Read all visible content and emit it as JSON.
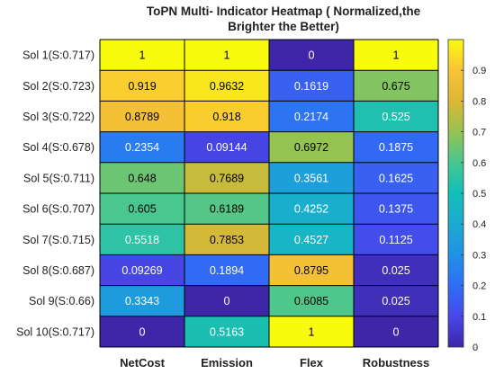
{
  "chart_data": {
    "type": "heatmap",
    "title_lines": [
      "ToPN Multi- Indicator Heatmap ( Normalized,the",
      "Brighter the Better)"
    ],
    "columns": [
      "NetCost",
      "Emission",
      "Flex",
      "Robustness"
    ],
    "rows": [
      "Sol 1(S:0.717)",
      "Sol 2(S:0.723)",
      "Sol 3(S:0.722)",
      "Sol 4(S:0.678)",
      "Sol 5(S:0.711)",
      "Sol 6(S:0.707)",
      "Sol 7(S:0.715)",
      "Sol 8(S:0.687)",
      "Sol 9(S:0.66)",
      "Sol 10(S:0.717)"
    ],
    "values": [
      [
        1,
        1,
        0,
        1
      ],
      [
        0.919,
        0.9632,
        0.1619,
        0.675
      ],
      [
        0.8789,
        0.918,
        0.2174,
        0.525
      ],
      [
        0.2354,
        0.09144,
        0.6972,
        0.1875
      ],
      [
        0.648,
        0.7689,
        0.3561,
        0.1625
      ],
      [
        0.605,
        0.6189,
        0.4252,
        0.1375
      ],
      [
        0.5518,
        0.7853,
        0.4527,
        0.1125
      ],
      [
        0.09269,
        0.1894,
        0.8795,
        0.025
      ],
      [
        0.3343,
        0,
        0.6085,
        0.025
      ],
      [
        0,
        0.5163,
        1,
        0
      ]
    ],
    "labels": [
      [
        "1",
        "1",
        "0",
        "1"
      ],
      [
        "0.919",
        "0.9632",
        "0.1619",
        "0.675"
      ],
      [
        "0.8789",
        "0.918",
        "0.2174",
        "0.525"
      ],
      [
        "0.2354",
        "0.09144",
        "0.6972",
        "0.1875"
      ],
      [
        "0.648",
        "0.7689",
        "0.3561",
        "0.1625"
      ],
      [
        "0.605",
        "0.6189",
        "0.4252",
        "0.1375"
      ],
      [
        "0.5518",
        "0.7853",
        "0.4527",
        "0.1125"
      ],
      [
        "0.09269",
        "0.1894",
        "0.8795",
        "0.025"
      ],
      [
        "0.3343",
        "0",
        "0.6085",
        "0.025"
      ],
      [
        "0",
        "0.5163",
        "1",
        "0"
      ]
    ],
    "colormap": "parula",
    "colorbar": {
      "range": [
        0,
        1
      ],
      "ticks": [
        "0",
        "0.1",
        "0.2",
        "0.3",
        "0.4",
        "0.5",
        "0.6",
        "0.7",
        "0.8",
        "0.9"
      ],
      "tick_values": [
        0,
        0.1,
        0.2,
        0.3,
        0.4,
        0.5,
        0.6,
        0.7,
        0.8,
        0.9
      ]
    }
  }
}
